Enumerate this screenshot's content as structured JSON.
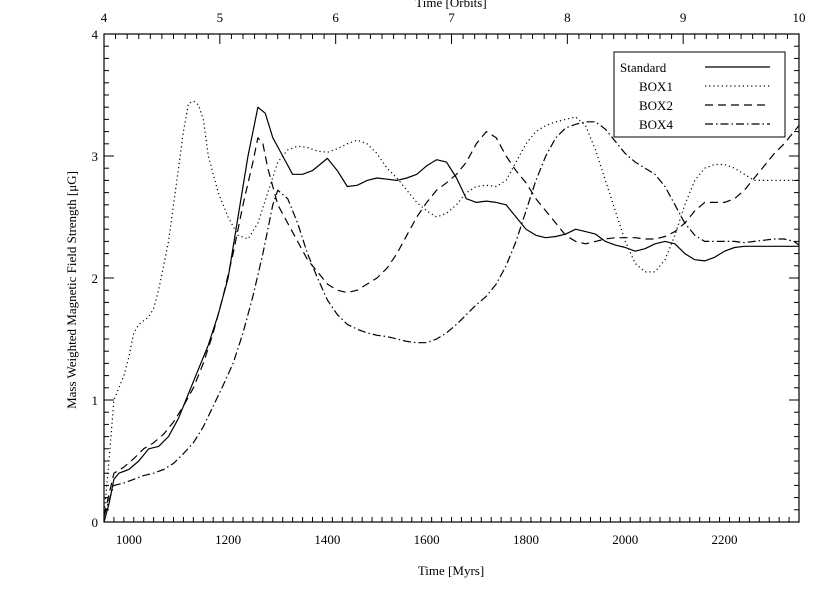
{
  "chart_data": {
    "type": "line",
    "xlabel": "Time [Myrs]",
    "ylabel": "Mass Weighted Magnetic Field Strength [μG]",
    "top_xlabel": "Time [Orbits]",
    "xlim": [
      950,
      2350
    ],
    "ylim": [
      0,
      4
    ],
    "x_ticks": [
      1000,
      1200,
      1400,
      1600,
      1800,
      2000,
      2200
    ],
    "y_ticks": [
      0,
      1,
      2,
      3,
      4
    ],
    "top_x_ticks": [
      4,
      5,
      6,
      7,
      8,
      9,
      10
    ],
    "top_x_range": [
      4,
      10
    ],
    "legend": {
      "placement": "top-right",
      "entries": [
        "Standard",
        "BOX1",
        "BOX2",
        "BOX4"
      ]
    },
    "series": [
      {
        "name": "Standard",
        "dash": "solid",
        "x": [
          950,
          960,
          970,
          980,
          1000,
          1020,
          1040,
          1060,
          1080,
          1100,
          1120,
          1140,
          1160,
          1180,
          1200,
          1220,
          1240,
          1260,
          1275,
          1290,
          1310,
          1330,
          1350,
          1370,
          1400,
          1420,
          1440,
          1460,
          1480,
          1500,
          1520,
          1540,
          1560,
          1580,
          1600,
          1620,
          1640,
          1660,
          1680,
          1700,
          1720,
          1740,
          1760,
          1780,
          1800,
          1820,
          1840,
          1860,
          1880,
          1900,
          1920,
          1940,
          1960,
          1980,
          2000,
          2020,
          2040,
          2060,
          2080,
          2100,
          2120,
          2140,
          2160,
          2180,
          2200,
          2220,
          2240,
          2260,
          2280,
          2300,
          2320,
          2340,
          2350
        ],
        "y": [
          0,
          0.15,
          0.35,
          0.4,
          0.43,
          0.5,
          0.6,
          0.62,
          0.7,
          0.85,
          1.05,
          1.25,
          1.45,
          1.7,
          2.0,
          2.5,
          3.0,
          3.4,
          3.35,
          3.15,
          3.0,
          2.85,
          2.85,
          2.88,
          2.98,
          2.88,
          2.75,
          2.76,
          2.8,
          2.82,
          2.81,
          2.8,
          2.82,
          2.85,
          2.92,
          2.97,
          2.95,
          2.82,
          2.65,
          2.62,
          2.63,
          2.62,
          2.6,
          2.5,
          2.4,
          2.35,
          2.33,
          2.34,
          2.36,
          2.4,
          2.38,
          2.36,
          2.3,
          2.27,
          2.25,
          2.22,
          2.24,
          2.28,
          2.3,
          2.28,
          2.2,
          2.15,
          2.14,
          2.17,
          2.22,
          2.25,
          2.26,
          2.26,
          2.26,
          2.26,
          2.26,
          2.26,
          2.26
        ]
      },
      {
        "name": "BOX1",
        "dash": "dotted",
        "x": [
          950,
          960,
          970,
          980,
          990,
          1000,
          1010,
          1020,
          1030,
          1040,
          1050,
          1060,
          1070,
          1080,
          1090,
          1100,
          1110,
          1120,
          1130,
          1140,
          1150,
          1160,
          1180,
          1200,
          1220,
          1240,
          1260,
          1280,
          1300,
          1320,
          1340,
          1360,
          1380,
          1400,
          1420,
          1440,
          1460,
          1480,
          1500,
          1520,
          1540,
          1560,
          1580,
          1600,
          1620,
          1640,
          1660,
          1680,
          1700,
          1720,
          1740,
          1760,
          1780,
          1800,
          1820,
          1840,
          1860,
          1880,
          1900,
          1920,
          1940,
          1960,
          1980,
          2000,
          2020,
          2040,
          2060,
          2080,
          2100,
          2120,
          2140,
          2160,
          2180,
          2200,
          2220,
          2240,
          2260,
          2280,
          2300,
          2320,
          2340,
          2350
        ],
        "y": [
          0.05,
          0.5,
          1.0,
          1.1,
          1.2,
          1.35,
          1.55,
          1.62,
          1.65,
          1.68,
          1.75,
          1.9,
          2.1,
          2.3,
          2.6,
          2.9,
          3.2,
          3.43,
          3.45,
          3.42,
          3.3,
          3.0,
          2.7,
          2.5,
          2.35,
          2.32,
          2.45,
          2.7,
          2.95,
          3.05,
          3.08,
          3.07,
          3.04,
          3.03,
          3.06,
          3.1,
          3.13,
          3.1,
          3.02,
          2.9,
          2.82,
          2.72,
          2.62,
          2.55,
          2.5,
          2.53,
          2.6,
          2.7,
          2.75,
          2.76,
          2.75,
          2.8,
          2.95,
          3.1,
          3.2,
          3.25,
          3.28,
          3.3,
          3.32,
          3.25,
          3.05,
          2.8,
          2.55,
          2.3,
          2.12,
          2.05,
          2.05,
          2.15,
          2.35,
          2.6,
          2.8,
          2.9,
          2.93,
          2.93,
          2.9,
          2.85,
          2.8,
          2.8,
          2.8,
          2.8,
          2.8,
          2.8
        ]
      },
      {
        "name": "BOX2",
        "dash": "dashed",
        "x": [
          950,
          970,
          990,
          1010,
          1030,
          1050,
          1070,
          1090,
          1110,
          1130,
          1150,
          1170,
          1190,
          1210,
          1230,
          1250,
          1260,
          1270,
          1280,
          1300,
          1320,
          1340,
          1360,
          1380,
          1400,
          1420,
          1440,
          1460,
          1480,
          1500,
          1520,
          1540,
          1560,
          1580,
          1600,
          1620,
          1640,
          1660,
          1680,
          1700,
          1720,
          1740,
          1760,
          1780,
          1800,
          1820,
          1840,
          1860,
          1880,
          1900,
          1920,
          1940,
          1960,
          1980,
          2000,
          2020,
          2040,
          2060,
          2080,
          2100,
          2120,
          2140,
          2160,
          2180,
          2200,
          2220,
          2240,
          2260,
          2280,
          2300,
          2320,
          2340,
          2350
        ],
        "y": [
          0.05,
          0.4,
          0.45,
          0.52,
          0.6,
          0.65,
          0.72,
          0.82,
          0.95,
          1.1,
          1.3,
          1.55,
          1.85,
          2.2,
          2.6,
          2.95,
          3.15,
          3.1,
          2.9,
          2.6,
          2.45,
          2.3,
          2.15,
          2.05,
          1.95,
          1.9,
          1.88,
          1.9,
          1.95,
          2.0,
          2.08,
          2.2,
          2.35,
          2.5,
          2.62,
          2.72,
          2.78,
          2.85,
          2.95,
          3.1,
          3.2,
          3.15,
          3.0,
          2.88,
          2.78,
          2.65,
          2.55,
          2.45,
          2.35,
          2.3,
          2.28,
          2.3,
          2.32,
          2.33,
          2.33,
          2.33,
          2.32,
          2.32,
          2.34,
          2.38,
          2.45,
          2.55,
          2.62,
          2.62,
          2.62,
          2.65,
          2.72,
          2.82,
          2.92,
          3.02,
          3.1,
          3.2,
          3.25
        ]
      },
      {
        "name": "BOX4",
        "dash": "dashdot",
        "x": [
          950,
          970,
          990,
          1010,
          1030,
          1050,
          1070,
          1090,
          1110,
          1130,
          1150,
          1170,
          1190,
          1210,
          1230,
          1250,
          1270,
          1290,
          1300,
          1320,
          1340,
          1360,
          1380,
          1400,
          1420,
          1440,
          1460,
          1480,
          1500,
          1520,
          1540,
          1560,
          1580,
          1600,
          1620,
          1640,
          1660,
          1680,
          1700,
          1720,
          1740,
          1760,
          1780,
          1800,
          1820,
          1840,
          1860,
          1880,
          1900,
          1920,
          1940,
          1960,
          1980,
          2000,
          2020,
          2040,
          2060,
          2080,
          2100,
          2120,
          2140,
          2160,
          2180,
          2200,
          2220,
          2240,
          2260,
          2280,
          2300,
          2320,
          2340,
          2350
        ],
        "y": [
          0.05,
          0.3,
          0.32,
          0.35,
          0.38,
          0.4,
          0.43,
          0.48,
          0.56,
          0.65,
          0.78,
          0.95,
          1.12,
          1.3,
          1.55,
          1.85,
          2.2,
          2.6,
          2.72,
          2.65,
          2.45,
          2.2,
          2.0,
          1.82,
          1.7,
          1.62,
          1.58,
          1.55,
          1.53,
          1.52,
          1.5,
          1.48,
          1.47,
          1.47,
          1.5,
          1.55,
          1.62,
          1.7,
          1.78,
          1.85,
          1.95,
          2.1,
          2.3,
          2.55,
          2.8,
          3.0,
          3.15,
          3.23,
          3.26,
          3.28,
          3.28,
          3.22,
          3.12,
          3.02,
          2.95,
          2.9,
          2.85,
          2.75,
          2.6,
          2.45,
          2.35,
          2.3,
          2.3,
          2.3,
          2.3,
          2.29,
          2.3,
          2.31,
          2.32,
          2.32,
          2.3,
          2.27
        ]
      }
    ]
  }
}
